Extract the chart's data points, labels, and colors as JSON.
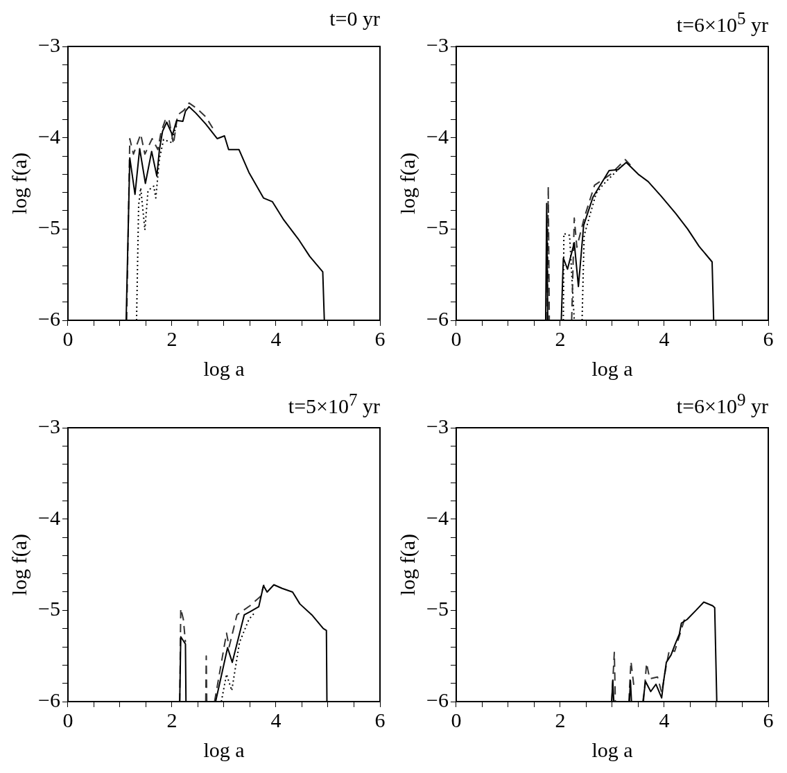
{
  "chart_data": [
    {
      "type": "line",
      "title": "t=0 yr",
      "xlabel": "log a",
      "ylabel": "log f(a)",
      "xlim": [
        0,
        6
      ],
      "ylim": [
        -6,
        -3
      ],
      "xticks": [
        0,
        {
          "value": 0.5,
          "label": null
        },
        {
          "value": 1,
          "label": null
        },
        {
          "value": 1.5,
          "label": null
        },
        2,
        {
          "value": 2.5,
          "label": null
        },
        {
          "value": 3,
          "label": null
        },
        {
          "value": 3.5,
          "label": null
        },
        4,
        {
          "value": 4.5,
          "label": null
        },
        {
          "value": 5,
          "label": null
        },
        {
          "value": 5.5,
          "label": null
        },
        6
      ],
      "yticks": [
        -6,
        {
          "value": -5.8,
          "label": null
        },
        {
          "value": -5.6,
          "label": null
        },
        {
          "value": -5.4,
          "label": null
        },
        {
          "value": -5.2,
          "label": null
        },
        -5,
        {
          "value": -4.8,
          "label": null
        },
        {
          "value": -4.6,
          "label": null
        },
        {
          "value": -4.4,
          "label": null
        },
        {
          "value": -4.2,
          "label": null
        },
        -4,
        {
          "value": -3.8,
          "label": null
        },
        {
          "value": -3.6,
          "label": null
        },
        {
          "value": -3.4,
          "label": null
        },
        {
          "value": -3.2,
          "label": null
        },
        -3
      ],
      "grid": false,
      "legend": false,
      "marker": "none",
      "series": [
        {
          "color": "#000000",
          "line_style": "solid",
          "x": [
            1.12,
            1.19,
            1.29,
            1.38,
            1.49,
            1.61,
            1.71,
            1.76,
            1.82,
            1.9,
            2.01,
            2.09,
            2.21,
            2.26,
            2.33,
            2.46,
            2.65,
            2.87,
            3.01,
            3.09,
            3.29,
            3.48,
            3.76,
            3.93,
            4.15,
            4.43,
            4.65,
            4.9,
            4.93
          ],
          "values": [
            -6,
            -4.22,
            -4.62,
            -4.12,
            -4.5,
            -4.15,
            -4.42,
            -4.13,
            -3.93,
            -3.83,
            -3.97,
            -3.81,
            -3.82,
            -3.71,
            -3.66,
            -3.73,
            -3.85,
            -4.01,
            -3.98,
            -4.13,
            -4.13,
            -4.38,
            -4.66,
            -4.7,
            -4.9,
            -5.11,
            -5.3,
            -5.47,
            -6
          ]
        },
        {
          "color": "#333333",
          "line_style": "dashed",
          "x": [
            1.13,
            1.19,
            1.26,
            1.4,
            1.48,
            1.62,
            1.73,
            1.79,
            1.87,
            1.94,
            2.03,
            2.11,
            2.23,
            2.33,
            2.48,
            2.65,
            2.79
          ],
          "values": [
            -6,
            -4.01,
            -4.18,
            -3.96,
            -4.18,
            -4.01,
            -4.13,
            -3.94,
            -3.81,
            -3.79,
            -4.07,
            -3.75,
            -3.7,
            -3.62,
            -3.68,
            -3.77,
            -3.9
          ]
        },
        {
          "color": "#000000",
          "line_style": "dotted",
          "x": [
            1.32,
            1.36,
            1.4,
            1.48,
            1.54,
            1.65,
            1.69,
            1.76,
            1.84,
            1.98,
            2.1
          ],
          "values": [
            -6,
            -4.74,
            -4.55,
            -5.01,
            -4.58,
            -4.53,
            -4.66,
            -4.23,
            -4.02,
            -4.05,
            -3.85
          ]
        }
      ]
    },
    {
      "type": "line",
      "title": "t=6×10$^{5}$ yr",
      "xlabel": "log a",
      "ylabel": "log f(a)",
      "xlim": [
        0,
        6
      ],
      "ylim": [
        -6,
        -3
      ],
      "xticks": [
        0,
        {
          "value": 0.5,
          "label": null
        },
        {
          "value": 1,
          "label": null
        },
        {
          "value": 1.5,
          "label": null
        },
        2,
        {
          "value": 2.5,
          "label": null
        },
        {
          "value": 3,
          "label": null
        },
        {
          "value": 3.5,
          "label": null
        },
        4,
        {
          "value": 4.5,
          "label": null
        },
        {
          "value": 5,
          "label": null
        },
        {
          "value": 5.5,
          "label": null
        },
        6
      ],
      "yticks": [
        -6,
        {
          "value": -5.8,
          "label": null
        },
        {
          "value": -5.6,
          "label": null
        },
        {
          "value": -5.4,
          "label": null
        },
        {
          "value": -5.2,
          "label": null
        },
        -5,
        {
          "value": -4.8,
          "label": null
        },
        {
          "value": -4.6,
          "label": null
        },
        {
          "value": -4.4,
          "label": null
        },
        {
          "value": -4.2,
          "label": null
        },
        -4,
        {
          "value": -3.8,
          "label": null
        },
        {
          "value": -3.6,
          "label": null
        },
        {
          "value": -3.4,
          "label": null
        },
        {
          "value": -3.2,
          "label": null
        },
        -3
      ],
      "grid": false,
      "legend": false,
      "marker": "none",
      "series": [
        {
          "color": "#000000",
          "line_style": "solid",
          "x": [
            1.72,
            1.74,
            1.76,
            1.9,
            2.02,
            2.06,
            2.14,
            2.27,
            2.35,
            2.45,
            2.63,
            2.94,
            3.11,
            3.27,
            3.5,
            3.69,
            3.94,
            4.22,
            4.45,
            4.67,
            4.92,
            4.95
          ],
          "values": [
            -6,
            -4.72,
            -6,
            null,
            -6,
            -5.32,
            -5.44,
            -5.15,
            -5.63,
            -4.96,
            -4.65,
            -4.36,
            -4.35,
            -4.27,
            -4.4,
            -4.48,
            -4.64,
            -4.83,
            -5.0,
            -5.19,
            -5.36,
            -6
          ]
        },
        {
          "color": "#333333",
          "line_style": "dashed",
          "x": [
            1.75,
            1.77,
            1.79,
            2.1,
            2.22,
            2.27,
            2.32,
            2.46,
            2.66,
            2.97,
            3.25,
            3.35
          ],
          "values": [
            -6,
            -4.53,
            -6,
            null,
            -6,
            -4.88,
            -5.2,
            -4.88,
            -4.52,
            -4.4,
            -4.24,
            -4.3
          ]
        },
        {
          "color": "#000000",
          "line_style": "dotted",
          "x": [
            2.06,
            2.07,
            2.18,
            2.27,
            2.35,
            2.42,
            2.46,
            2.58,
            2.69,
            2.83,
            2.97,
            3.2
          ],
          "values": [
            -6,
            -5.05,
            -5.07,
            -6,
            null,
            -6,
            -5.07,
            -4.83,
            -4.61,
            -4.51,
            -4.43,
            -4.3
          ]
        }
      ]
    },
    {
      "type": "line",
      "title": "t=5×10$^{7}$ yr",
      "xlabel": "log a",
      "ylabel": "log f(a)",
      "xlim": [
        0,
        6
      ],
      "ylim": [
        -6,
        -3
      ],
      "xticks": [
        0,
        {
          "value": 0.5,
          "label": null
        },
        {
          "value": 1,
          "label": null
        },
        {
          "value": 1.5,
          "label": null
        },
        2,
        {
          "value": 2.5,
          "label": null
        },
        {
          "value": 3,
          "label": null
        },
        {
          "value": 3.5,
          "label": null
        },
        4,
        {
          "value": 4.5,
          "label": null
        },
        {
          "value": 5,
          "label": null
        },
        {
          "value": 5.5,
          "label": null
        },
        6
      ],
      "yticks": [
        -6,
        {
          "value": -5.8,
          "label": null
        },
        {
          "value": -5.6,
          "label": null
        },
        {
          "value": -5.4,
          "label": null
        },
        {
          "value": -5.2,
          "label": null
        },
        -5,
        {
          "value": -4.8,
          "label": null
        },
        {
          "value": -4.6,
          "label": null
        },
        {
          "value": -4.4,
          "label": null
        },
        {
          "value": -4.2,
          "label": null
        },
        -4,
        {
          "value": -3.8,
          "label": null
        },
        {
          "value": -3.6,
          "label": null
        },
        {
          "value": -3.4,
          "label": null
        },
        {
          "value": -3.2,
          "label": null
        },
        -3
      ],
      "grid": false,
      "legend": false,
      "marker": "none",
      "series": [
        {
          "color": "#000000",
          "line_style": "solid",
          "x": [
            2.15,
            2.17,
            2.26,
            2.27,
            2.5,
            2.84,
            3.07,
            3.16,
            3.39,
            3.49,
            3.67,
            3.76,
            3.83,
            3.96,
            4.12,
            4.32,
            4.46,
            4.69,
            4.91,
            4.97,
            4.98
          ],
          "values": [
            -6,
            -5.29,
            -5.37,
            -6,
            null,
            -6,
            -5.41,
            -5.57,
            -5.05,
            -5.02,
            -4.96,
            -4.73,
            -4.8,
            -4.72,
            -4.76,
            -4.8,
            -4.93,
            -5.05,
            -5.2,
            -5.22,
            -6
          ]
        },
        {
          "color": "#333333",
          "line_style": "dashed",
          "x": [
            2.15,
            2.17,
            2.22,
            2.26,
            2.3,
            2.65,
            2.66,
            2.67,
            2.8,
            2.82,
            3.05,
            3.1,
            3.25,
            3.5,
            3.7,
            3.77
          ],
          "values": [
            -6,
            -4.98,
            -5.1,
            -5.35,
            null,
            -6,
            -5.5,
            -6,
            null,
            -6,
            -5.25,
            -5.4,
            -5.05,
            -4.95,
            -4.85,
            -4.72
          ]
        },
        {
          "color": "#000000",
          "line_style": "dotted",
          "x": [
            2.95,
            3.05,
            3.15,
            3.3,
            3.48,
            3.6
          ],
          "values": [
            -6,
            -5.7,
            -5.88,
            -5.35,
            -5.1,
            -5.02
          ]
        }
      ]
    },
    {
      "type": "line",
      "title": "t=6×10$^{9}$ yr",
      "xlabel": "log a",
      "ylabel": "log f(a)",
      "xlim": [
        0,
        6
      ],
      "ylim": [
        -6,
        -3
      ],
      "xticks": [
        0,
        {
          "value": 0.5,
          "label": null
        },
        {
          "value": 1,
          "label": null
        },
        {
          "value": 1.5,
          "label": null
        },
        2,
        {
          "value": 2.5,
          "label": null
        },
        {
          "value": 3,
          "label": null
        },
        {
          "value": 3.5,
          "label": null
        },
        4,
        {
          "value": 4.5,
          "label": null
        },
        {
          "value": 5,
          "label": null
        },
        {
          "value": 5.5,
          "label": null
        },
        6
      ],
      "yticks": [
        -6,
        {
          "value": -5.8,
          "label": null
        },
        {
          "value": -5.6,
          "label": null
        },
        {
          "value": -5.4,
          "label": null
        },
        {
          "value": -5.2,
          "label": null
        },
        -5,
        {
          "value": -4.8,
          "label": null
        },
        {
          "value": -4.6,
          "label": null
        },
        {
          "value": -4.4,
          "label": null
        },
        {
          "value": -4.2,
          "label": null
        },
        -4,
        {
          "value": -3.8,
          "label": null
        },
        {
          "value": -3.6,
          "label": null
        },
        {
          "value": -3.4,
          "label": null
        },
        {
          "value": -3.2,
          "label": null
        },
        -3
      ],
      "grid": false,
      "legend": false,
      "marker": "none",
      "series": [
        {
          "color": "#000000",
          "line_style": "solid",
          "x": [
            2.99,
            3.01,
            3.03,
            3.2,
            3.33,
            3.35,
            3.37,
            3.5,
            3.59,
            3.64,
            3.74,
            3.84,
            3.95,
            3.99,
            4.04,
            4.13,
            4.21,
            4.29,
            4.33,
            4.44,
            4.61,
            4.76,
            4.93,
            4.97,
            5.01
          ],
          "values": [
            -6,
            -5.77,
            -6,
            null,
            -6,
            -5.77,
            -6,
            null,
            -6,
            -5.78,
            -5.89,
            -5.81,
            -5.96,
            -5.77,
            -5.57,
            -5.49,
            -5.37,
            -5.26,
            -5.14,
            -5.1,
            -5.0,
            -4.91,
            -4.95,
            -4.97,
            -6
          ]
        },
        {
          "color": "#333333",
          "line_style": "dashed",
          "x": [
            2.99,
            3.04,
            3.06,
            3.3,
            3.32,
            3.36,
            3.42,
            3.5,
            3.6,
            3.66,
            3.72,
            3.87,
            3.95,
            4.04,
            4.1,
            4.2,
            4.41
          ],
          "values": [
            -6,
            -5.46,
            -6,
            null,
            -6,
            -5.56,
            -5.85,
            null,
            -6,
            -5.58,
            -5.75,
            -5.73,
            -5.9,
            -5.6,
            -5.43,
            -5.45,
            -5.06
          ]
        }
      ]
    }
  ]
}
